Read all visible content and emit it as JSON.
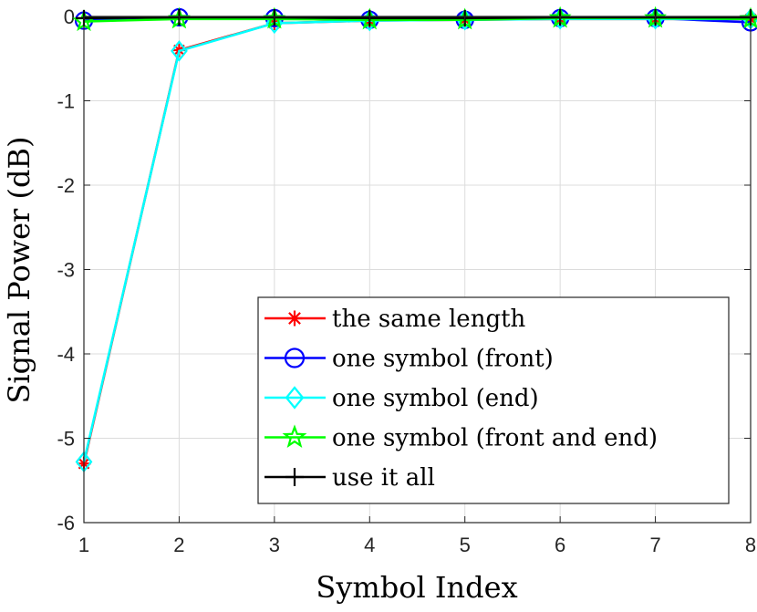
{
  "chart_data": {
    "type": "line",
    "xlabel": "Symbol Index",
    "ylabel": "Signal Power (dB)",
    "xlim": [
      1,
      8
    ],
    "ylim": [
      -6,
      0
    ],
    "xticks": [
      "1",
      "2",
      "3",
      "4",
      "5",
      "6",
      "7",
      "8"
    ],
    "yticks": [
      "0",
      "-1",
      "-2",
      "-3",
      "-4",
      "-5",
      "-6"
    ],
    "grid": true,
    "legend_position": "lower-right",
    "x": [
      1,
      2,
      3,
      4,
      5,
      6,
      7,
      8
    ],
    "series": [
      {
        "name": "the same length",
        "color": "#ff0000",
        "marker": "asterisk",
        "values": [
          -5.3,
          -0.4,
          -0.08,
          -0.05,
          -0.04,
          -0.03,
          -0.03,
          -0.03
        ]
      },
      {
        "name": "one symbol (front)",
        "color": "#0000ff",
        "marker": "circle",
        "values": [
          -0.05,
          -0.01,
          -0.02,
          -0.04,
          -0.04,
          -0.02,
          -0.02,
          -0.07
        ]
      },
      {
        "name": "one symbol (end)",
        "color": "#00ffff",
        "marker": "diamond",
        "values": [
          -5.28,
          -0.41,
          -0.08,
          -0.05,
          -0.04,
          -0.03,
          -0.03,
          -0.03
        ]
      },
      {
        "name": "one symbol (front and end)",
        "color": "#00ff00",
        "marker": "pentagram",
        "values": [
          -0.06,
          -0.03,
          -0.03,
          -0.04,
          -0.04,
          -0.02,
          -0.02,
          -0.03
        ]
      },
      {
        "name": "use it all",
        "color": "#000000",
        "marker": "plus",
        "values": [
          -0.02,
          -0.01,
          -0.01,
          -0.02,
          -0.02,
          -0.01,
          -0.01,
          -0.01
        ]
      }
    ]
  }
}
